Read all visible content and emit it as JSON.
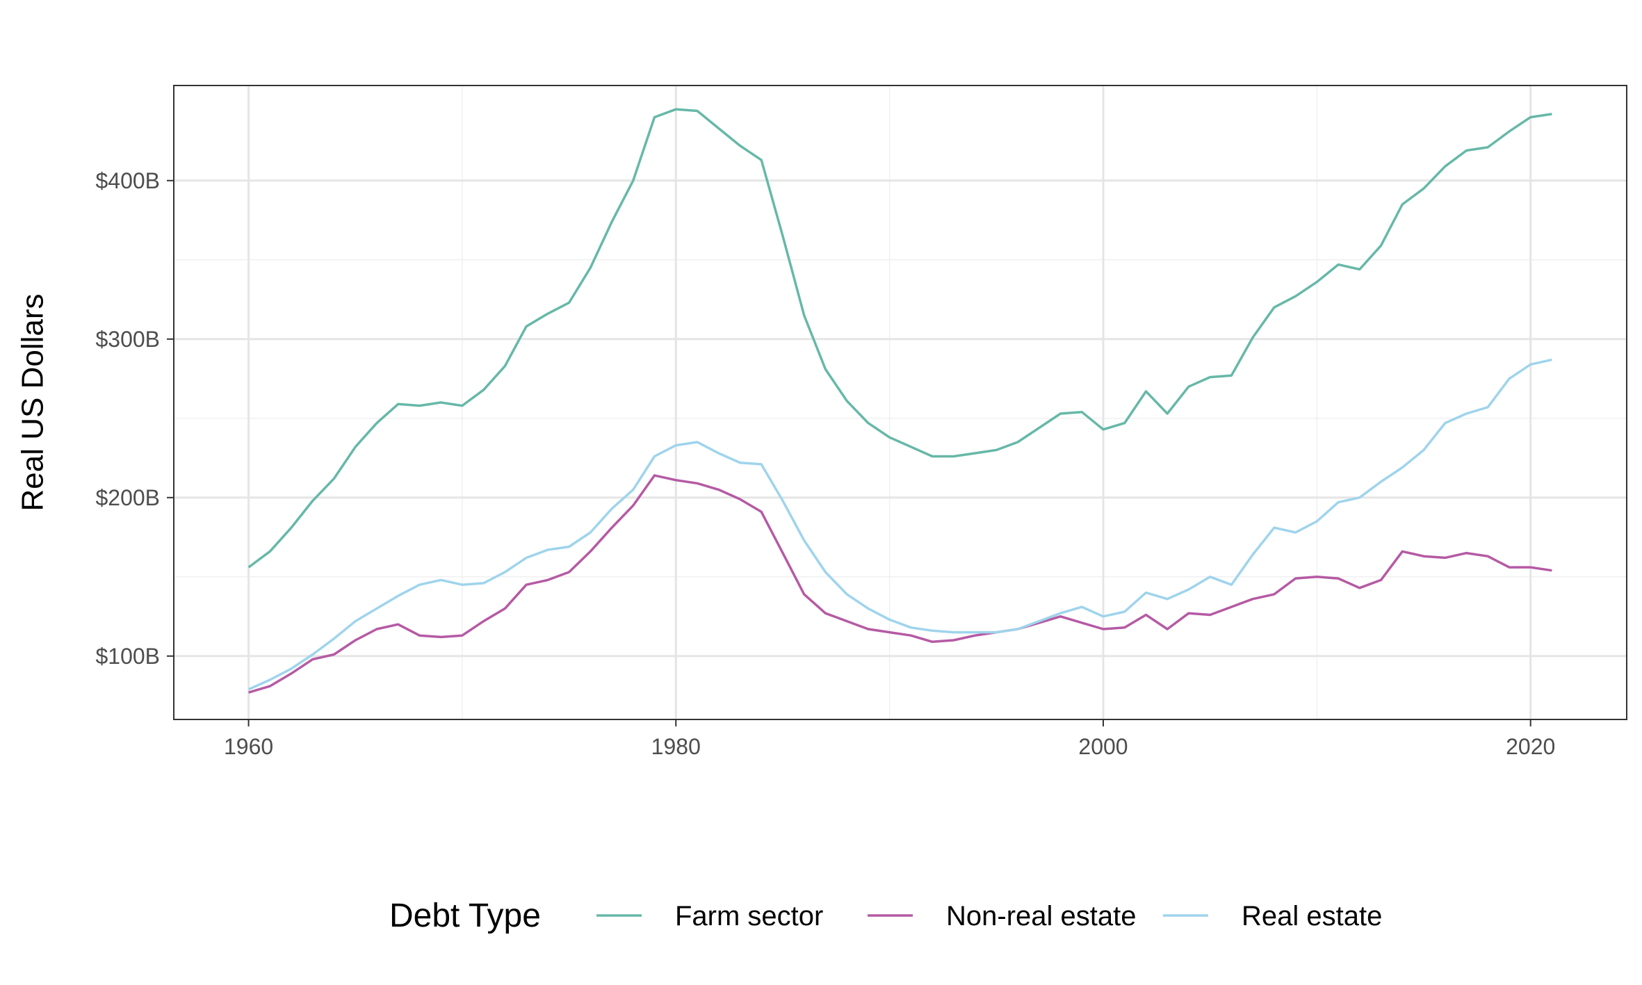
{
  "chart_data": {
    "type": "line",
    "title": "",
    "xlabel": "",
    "ylabel": "Real US Dollars",
    "xlim": [
      1956.5,
      2024.5
    ],
    "ylim": [
      60,
      460
    ],
    "x_ticks": [
      1960,
      1980,
      2000,
      2020
    ],
    "x_tick_labels": [
      "1960",
      "1980",
      "2000",
      "2020"
    ],
    "y_ticks": [
      100,
      200,
      300,
      400
    ],
    "y_tick_labels": [
      "$100B",
      "$200B",
      "$300B",
      "$400B"
    ],
    "grid": true,
    "legend": {
      "title": "Debt Type",
      "position": "bottom"
    },
    "x": [
      1960,
      1961,
      1962,
      1963,
      1964,
      1965,
      1966,
      1967,
      1968,
      1969,
      1970,
      1971,
      1972,
      1973,
      1974,
      1975,
      1976,
      1977,
      1978,
      1979,
      1980,
      1981,
      1982,
      1983,
      1984,
      1985,
      1986,
      1987,
      1988,
      1989,
      1990,
      1991,
      1992,
      1993,
      1994,
      1995,
      1996,
      1997,
      1998,
      1999,
      2000,
      2001,
      2002,
      2003,
      2004,
      2005,
      2006,
      2007,
      2008,
      2009,
      2010,
      2011,
      2012,
      2013,
      2014,
      2015,
      2016,
      2017,
      2018,
      2019,
      2020,
      2021
    ],
    "series": [
      {
        "name": "Farm sector",
        "color": "#66b8a8",
        "values": [
          156,
          166,
          181,
          198,
          212,
          232,
          247,
          259,
          258,
          260,
          258,
          268,
          283,
          308,
          316,
          323,
          345,
          374,
          400,
          440,
          445,
          444,
          433,
          422,
          413,
          365,
          315,
          281,
          261,
          247,
          238,
          232,
          226,
          226,
          228,
          230,
          235,
          244,
          253,
          254,
          243,
          247,
          267,
          253,
          270,
          276,
          277,
          301,
          320,
          327,
          336,
          347,
          344,
          359,
          385,
          395,
          409,
          419,
          421,
          431,
          440,
          442
        ]
      },
      {
        "name": "Non-real estate",
        "color": "#b55aa4",
        "values": [
          77,
          81,
          89,
          98,
          101,
          110,
          117,
          120,
          113,
          112,
          113,
          122,
          130,
          145,
          148,
          153,
          166,
          181,
          195,
          214,
          211,
          209,
          205,
          199,
          191,
          165,
          139,
          127,
          122,
          117,
          115,
          113,
          109,
          110,
          113,
          115,
          117,
          121,
          125,
          121,
          117,
          118,
          126,
          117,
          127,
          126,
          131,
          136,
          139,
          149,
          150,
          149,
          143,
          148,
          166,
          163,
          162,
          165,
          163,
          156,
          156,
          154
        ]
      },
      {
        "name": "Real estate",
        "color": "#9fd4ec",
        "values": [
          79,
          85,
          92,
          101,
          111,
          122,
          130,
          138,
          145,
          148,
          145,
          146,
          153,
          162,
          167,
          169,
          178,
          193,
          205,
          226,
          233,
          235,
          228,
          222,
          221,
          198,
          173,
          153,
          139,
          130,
          123,
          118,
          116,
          115,
          115,
          115,
          117,
          122,
          127,
          131,
          125,
          128,
          140,
          136,
          142,
          150,
          145,
          164,
          181,
          178,
          185,
          197,
          200,
          210,
          219,
          230,
          247,
          253,
          257,
          275,
          284,
          287
        ]
      }
    ]
  }
}
